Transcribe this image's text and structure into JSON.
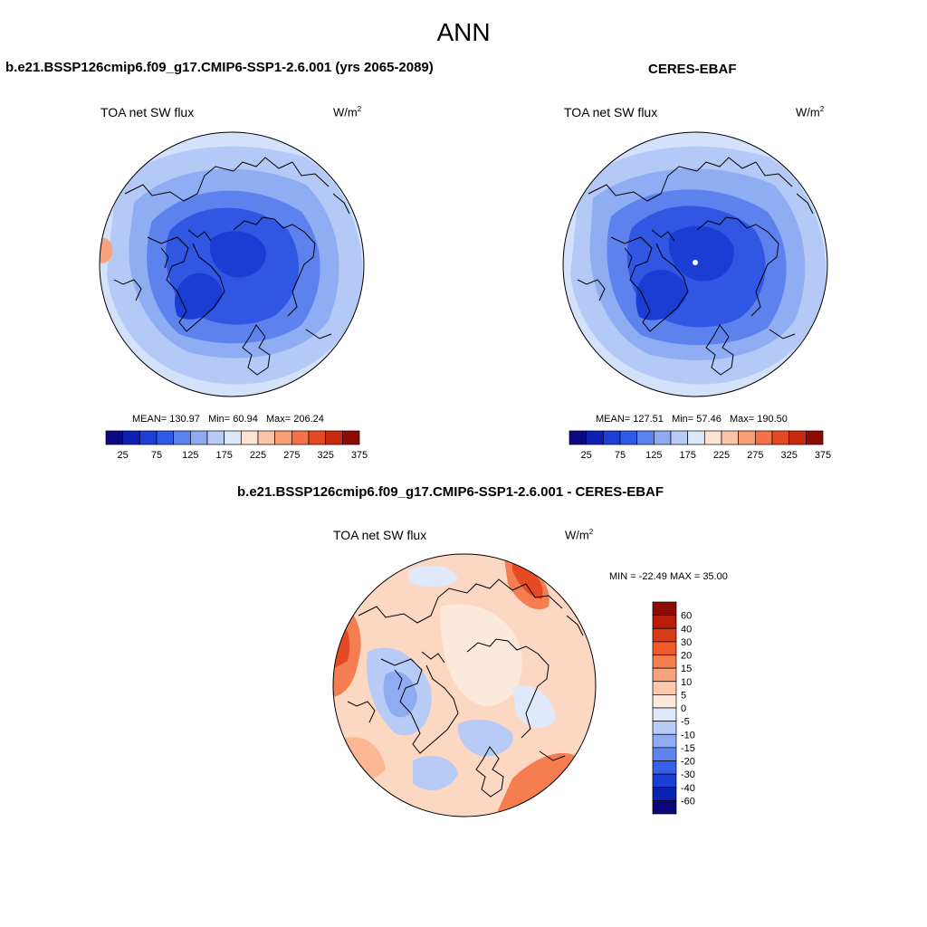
{
  "page": {
    "title": "ANN"
  },
  "panels": [
    {
      "title": "b.e21.BSSP126cmip6.f09_g17.CMIP6-SSP1-2.6.001 (yrs 2065-2089)",
      "var_label": "TOA net SW flux",
      "units": "W/m",
      "units_exp": "2",
      "stats": {
        "mean": "MEAN= 130.97",
        "min": "Min=  60.94",
        "max": "Max= 206.24"
      }
    },
    {
      "title": "CERES-EBAF",
      "var_label": "TOA net SW flux",
      "units": "W/m",
      "units_exp": "2",
      "stats": {
        "mean": "MEAN= 127.51",
        "min": "Min=  57.46",
        "max": "Max= 190.50"
      }
    }
  ],
  "diff_panel": {
    "title": "b.e21.BSSP126cmip6.f09_g17.CMIP6-SSP1-2.6.001 - CERES-EBAF",
    "var_label": "TOA net SW flux",
    "units": "W/m",
    "units_exp": "2",
    "minmax": "MIN = -22.49 MAX =  35.00"
  },
  "colorbar_abs": {
    "colors": [
      "#0a0a80",
      "#0d1fb5",
      "#1b3fd8",
      "#2e5ae6",
      "#5b82ef",
      "#8eaaf2",
      "#b8caf5",
      "#dde7fa",
      "#fde4d4",
      "#fcc4a6",
      "#f99e77",
      "#f4724a",
      "#e64a25",
      "#c72a10",
      "#8e0b05"
    ],
    "labels": [
      "25",
      "75",
      "125",
      "175",
      "225",
      "275",
      "325",
      "375"
    ]
  },
  "colorbar_diff": {
    "colors": [
      "#8e0b05",
      "#b81c0a",
      "#d93c14",
      "#f05a2a",
      "#f57e50",
      "#f9a37d",
      "#fcc9ac",
      "#fde8dc",
      "#dfe9fb",
      "#b7cbf6",
      "#8fabf1",
      "#5f84ee",
      "#3460ea",
      "#1a3fd6",
      "#0c22b0",
      "#08087a"
    ],
    "labels": [
      "60",
      "40",
      "30",
      "20",
      "15",
      "10",
      "5",
      "0",
      "-5",
      "-10",
      "-15",
      "-20",
      "-30",
      "-40",
      "-60"
    ]
  }
}
